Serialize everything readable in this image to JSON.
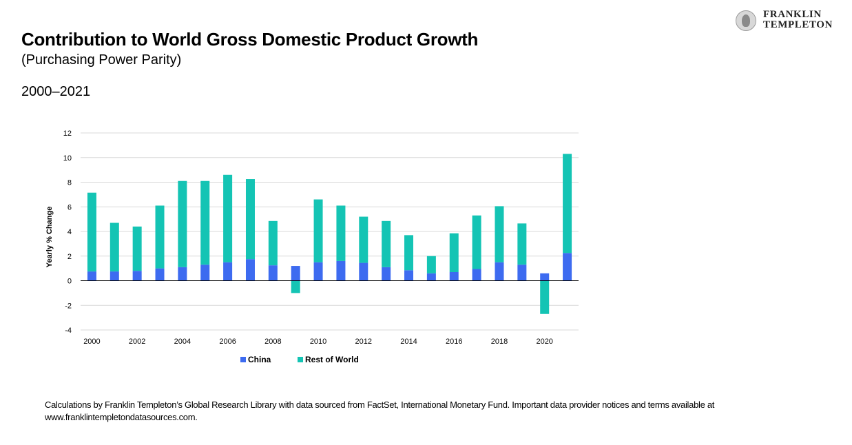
{
  "header": {
    "title": "Contribution to World Gross Domestic Product Growth",
    "subtitle": "(Purchasing Power Parity)",
    "period": "2000–2021"
  },
  "logo": {
    "line1": "FRANKLIN",
    "line2": "TEMPLETON"
  },
  "footnote": "Calculations by Franklin Templeton’s Global Research Library with data sourced from FactSet, International Monetary Fund. Important data provider notices and terms available at www.franklintempletondatasources.com.",
  "colors": {
    "china": "#3d6bf0",
    "rest_of_world": "#14c4b4",
    "grid": "#d9d9d9"
  },
  "chart_data": {
    "type": "bar",
    "stacked": true,
    "ylabel": "Yearly % Change",
    "ylim": [
      -4,
      12
    ],
    "yticks": [
      12,
      10,
      8,
      6,
      4,
      2,
      0,
      -2,
      -4
    ],
    "grid": true,
    "legend_position": "bottom",
    "categories": [
      "2000",
      "2001",
      "2002",
      "2003",
      "2004",
      "2005",
      "2006",
      "2007",
      "2008",
      "2009",
      "2010",
      "2011",
      "2012",
      "2013",
      "2014",
      "2015",
      "2016",
      "2017",
      "2018",
      "2019",
      "2020",
      "2021"
    ],
    "xtick_labels": [
      "2000",
      "",
      "2002",
      "",
      "2004",
      "",
      "2006",
      "",
      "2008",
      "",
      "2010",
      "",
      "2012",
      "",
      "2014",
      "",
      "2016",
      "",
      "2018",
      "",
      "2020",
      ""
    ],
    "series": [
      {
        "name": "China",
        "color": "#3d6bf0",
        "values": [
          0.75,
          0.75,
          0.8,
          1.0,
          1.1,
          1.3,
          1.5,
          1.75,
          1.25,
          1.2,
          1.5,
          1.6,
          1.45,
          1.1,
          0.85,
          0.6,
          0.7,
          0.95,
          1.5,
          1.3,
          0.6,
          2.25
        ]
      },
      {
        "name": "Rest of World",
        "color": "#14c4b4",
        "values": [
          6.4,
          3.95,
          3.6,
          5.1,
          7.0,
          6.8,
          7.1,
          6.5,
          3.6,
          -1.0,
          5.1,
          4.5,
          3.75,
          3.75,
          2.85,
          1.4,
          3.15,
          4.35,
          4.55,
          3.35,
          -2.7,
          8.05
        ]
      }
    ]
  }
}
